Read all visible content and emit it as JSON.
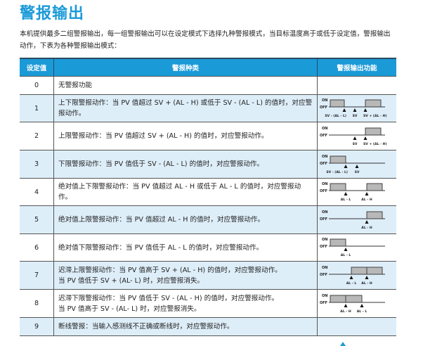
{
  "title": "警报输出",
  "intro": "本机提供最多二组警报输出，每一组警报输出可以在设定模式下选择九种警报模式，当目标温度高于或低于设定值，警报输出动作，下表为各种警报输出模式：",
  "colors": {
    "accent": "#1b9ad8",
    "row_alt": "#deeef9",
    "on_fill": "#b8b8b8"
  },
  "table": {
    "headers": [
      "设定值",
      "警报种类",
      "警报输出功能"
    ],
    "diagram_on_label": "ON",
    "diagram_off_label": "OFF",
    "rows": [
      {
        "value": "0",
        "lines": [
          "无警报功能"
        ],
        "markers": []
      },
      {
        "value": "1",
        "lines": [
          "上下限警报动作：当 PV 值超过 SV + (AL - H) 或低于 SV - (AL - L) 的值时，对应警报动作。"
        ],
        "markers": [
          "SV - (AL - L)",
          "SV",
          "SV + (AL - H)"
        ]
      },
      {
        "value": "2",
        "lines": [
          "上限警报动作：当 PV 值超过 SV + (AL - H) 的值时，对应警报动作。"
        ],
        "markers": [
          "SV",
          "SV + (AL - H)"
        ]
      },
      {
        "value": "3",
        "lines": [
          "下限警报动作：当 PV 值低于 SV - (AL - L) 的值时，对应警报动作。"
        ],
        "markers": [
          "SV - (AL - L)",
          "SV"
        ]
      },
      {
        "value": "4",
        "lines": [
          "绝对值上下限警报动作：当 PV 值超过 AL - H 或低于 AL - L 的值时，对应警报动作。"
        ],
        "markers": [
          "AL - L",
          "AL - H"
        ]
      },
      {
        "value": "5",
        "lines": [
          "绝对值上限警报动作：当 PV 值超过 AL - H 的值时，对应警报动作。"
        ],
        "markers": [
          "AL - H"
        ]
      },
      {
        "value": "6",
        "lines": [
          "绝对值下限警报动作：当 PV 值低于 AL - L 的值时，对应警报动作。"
        ],
        "markers": [
          "AL - L"
        ]
      },
      {
        "value": "7",
        "lines": [
          "迟滞上限警报动作：当 PV 值高于 SV + (AL - H) 的值时，对应警报动作。",
          "当 PV 值低于 SV + (AL- L) 时，对应警报消失。"
        ],
        "markers": [
          "AL - L",
          "AL - H"
        ]
      },
      {
        "value": "8",
        "lines": [
          "迟滞下限警报动作：当 PV 值低于 SV - (AL - H) 的值时，对应警报动作。",
          "当 PV 值高于 SV - (AL- L) 时，对应警报消失。"
        ],
        "markers": [
          "AL - H",
          "AL - L"
        ]
      },
      {
        "value": "9",
        "lines": [
          "断线警报：当输入感测线不正确或断线时，对应警报动作。"
        ],
        "markers": []
      }
    ]
  }
}
